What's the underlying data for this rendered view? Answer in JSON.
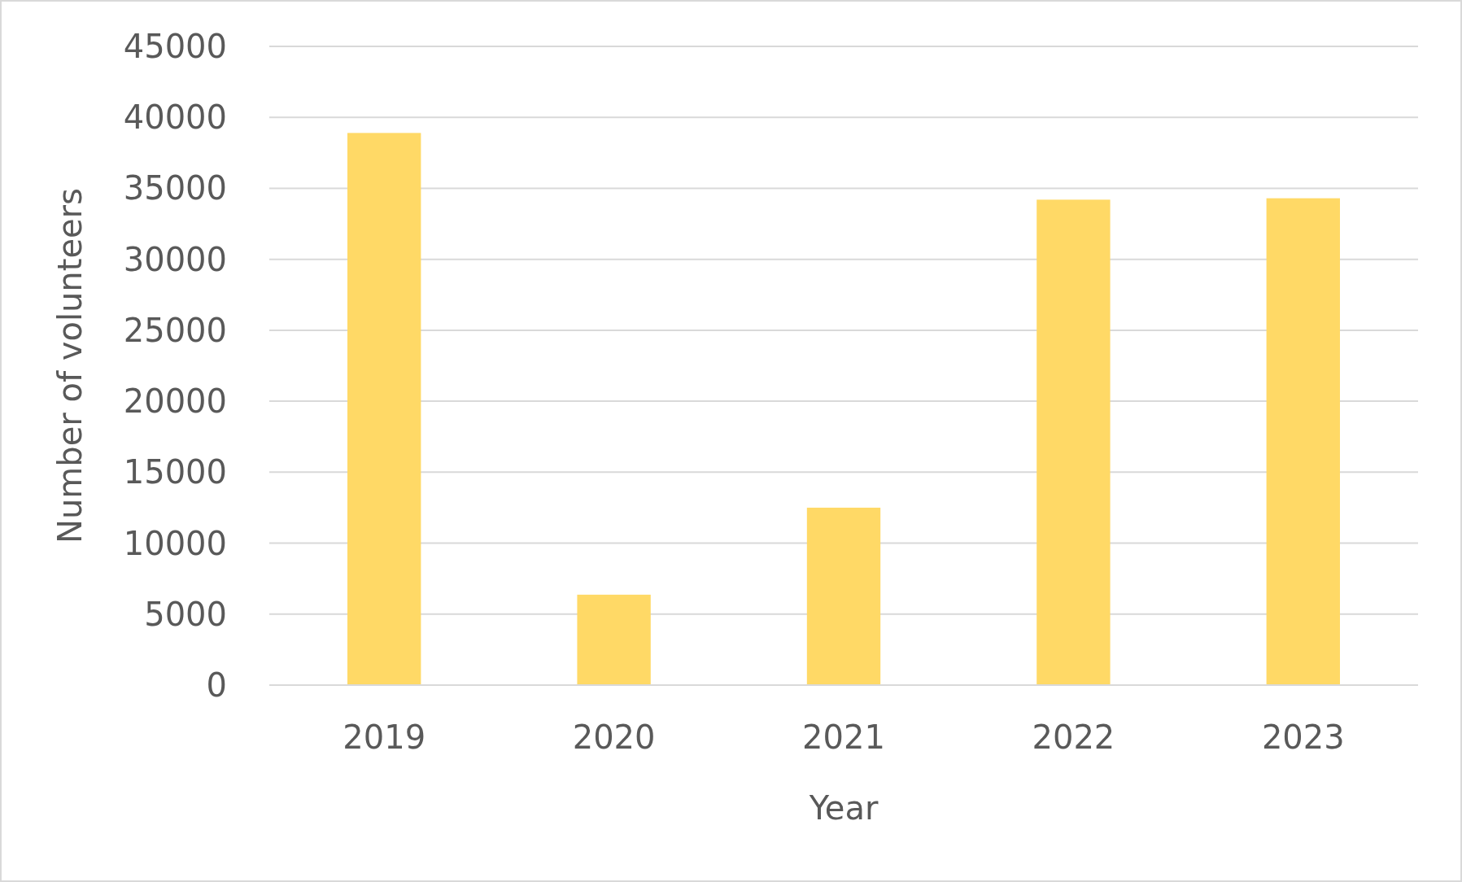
{
  "chart_data": {
    "type": "bar",
    "xlabel": "Year",
    "ylabel": "Number of volunteers",
    "categories": [
      "2019",
      "2020",
      "2021",
      "2022",
      "2023"
    ],
    "values": [
      38900,
      6370,
      12500,
      34200,
      34300
    ],
    "color": "#ffd966",
    "ylim": [
      0,
      45000
    ],
    "yticks": [
      0,
      5000,
      10000,
      15000,
      20000,
      25000,
      30000,
      35000,
      40000,
      45000
    ],
    "grid": "y"
  }
}
